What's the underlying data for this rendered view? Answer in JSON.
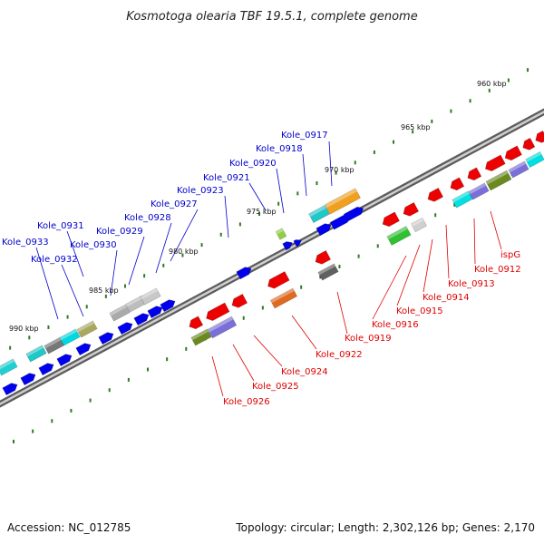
{
  "title": "Kosmotoga olearia TBF 19.5.1, complete genome",
  "footer": {
    "accession": "Accession: NC_012785",
    "topology": "Topology: circular; Length: 2,302,126 bp; Genes: 2,170"
  },
  "colors": {
    "forward_label": "#0000cc",
    "reverse_label": "#e00000",
    "backbone": "#8a8a8a",
    "tick": "#2e7d1e"
  },
  "position_ticks": [
    "960 kbp",
    "965 kbp",
    "970 kbp",
    "975 kbp",
    "980 kbp",
    "985 kbp",
    "990 kbp"
  ],
  "forward_labels": [
    "Kole_0917",
    "Kole_0918",
    "Kole_0920",
    "Kole_0921",
    "Kole_0923",
    "Kole_0927",
    "Kole_0928",
    "Kole_0929",
    "Kole_0930",
    "Kole_0931",
    "Kole_0932",
    "Kole_0933"
  ],
  "reverse_labels": [
    "ispG",
    "Kole_0912",
    "Kole_0913",
    "Kole_0914",
    "Kole_0915",
    "Kole_0916",
    "Kole_0919",
    "Kole_0922",
    "Kole_0924",
    "Kole_0925",
    "Kole_0926"
  ]
}
